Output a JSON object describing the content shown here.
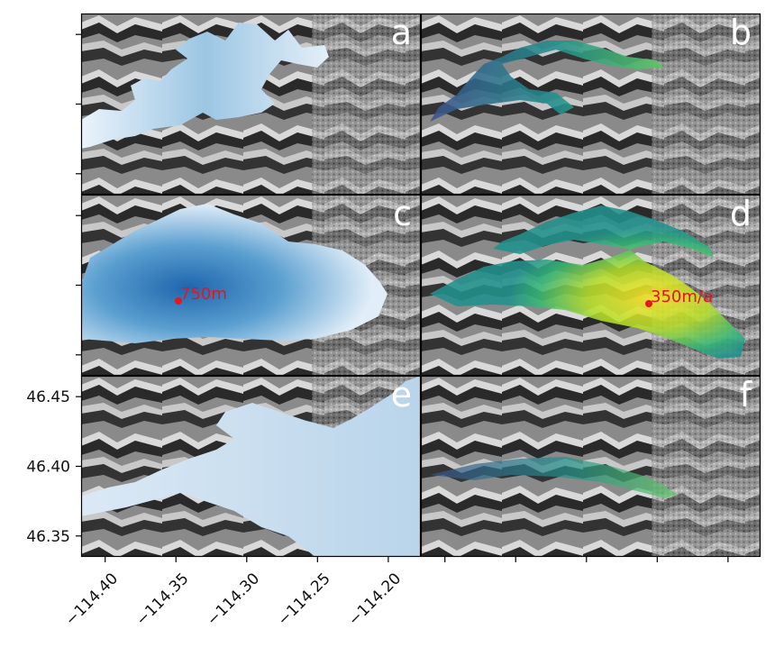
{
  "figure": {
    "panels": [
      {
        "id": "a",
        "letter": "a",
        "field": "ice-thickness",
        "annotation": null
      },
      {
        "id": "b",
        "letter": "b",
        "field": "ice-velocity",
        "annotation": null
      },
      {
        "id": "c",
        "letter": "c",
        "field": "ice-thickness",
        "annotation": {
          "label": "750m"
        }
      },
      {
        "id": "d",
        "letter": "d",
        "field": "ice-velocity",
        "annotation": {
          "label": "350m/a"
        }
      },
      {
        "id": "e",
        "letter": "e",
        "field": "ice-thickness",
        "annotation": null
      },
      {
        "id": "f",
        "letter": "f",
        "field": "ice-velocity",
        "annotation": null
      }
    ],
    "x_axis": {
      "ticks": [
        -114.4,
        -114.35,
        -114.3,
        -114.25,
        -114.2
      ],
      "tick_labels": [
        "−114.40",
        "−114.35",
        "−114.30",
        "−114.25",
        "−114.20"
      ],
      "range": [
        -114.417,
        -114.177
      ]
    },
    "y_axis": {
      "ticks": [
        46.35,
        46.4,
        46.45
      ],
      "tick_labels": [
        "46.35",
        "46.40",
        "46.45"
      ],
      "range": [
        46.335,
        46.465
      ]
    },
    "colors": {
      "thickness_light": "#d8e8f4",
      "thickness_dark": "#1f66ad",
      "velocity_low": "#3b528b",
      "velocity_mid": "#21918c",
      "velocity_high": "#fde725",
      "annotation_point": "#e8141e",
      "hillshade_dark": "#222222",
      "hillshade_light": "#d6d6d6"
    }
  }
}
